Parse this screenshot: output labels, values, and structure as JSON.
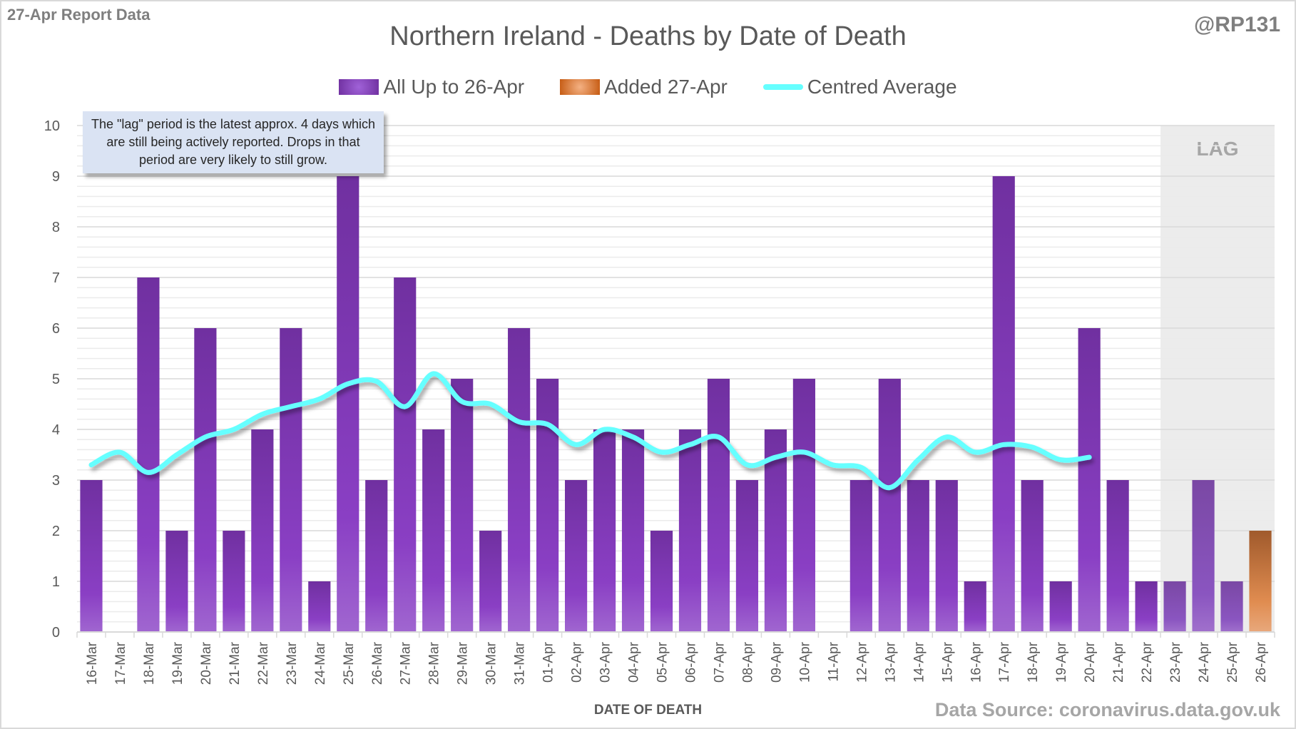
{
  "header": {
    "report_label": "27-Apr Report Data",
    "handle": "@RP131",
    "title": "Northern Ireland - Deaths by Date of Death"
  },
  "legend": {
    "items": [
      {
        "label": "All Up to 26-Apr",
        "kind": "bar",
        "color": "#7c35b8"
      },
      {
        "label": "Added 27-Apr",
        "kind": "bar",
        "color": "#d9773a"
      },
      {
        "label": "Centred Average",
        "kind": "line",
        "color": "#66ffff"
      }
    ]
  },
  "annotation": {
    "note": "The \"lag\" period is the latest approx. 4 days which are still being actively reported. Drops in that period are very likely to still grow.",
    "lag_label": "LAG"
  },
  "footer": {
    "xlabel": "DATE OF DEATH",
    "source": "Data Source: coronavirus.data.gov.uk"
  },
  "chart_data": {
    "type": "bar",
    "title": "Northern Ireland - Deaths by Date of Death",
    "xlabel": "DATE OF DEATH",
    "ylabel": "",
    "ylim": [
      0,
      10
    ],
    "yticks": [
      0,
      1,
      2,
      3,
      4,
      5,
      6,
      7,
      8,
      9,
      10
    ],
    "minor_grid_step": 0.2,
    "grid": true,
    "legend_position": "top-center",
    "lag_start_category": "23-Apr",
    "categories": [
      "16-Mar",
      "17-Mar",
      "18-Mar",
      "19-Mar",
      "20-Mar",
      "21-Mar",
      "22-Mar",
      "23-Mar",
      "24-Mar",
      "25-Mar",
      "26-Mar",
      "27-Mar",
      "28-Mar",
      "29-Mar",
      "30-Mar",
      "31-Mar",
      "01-Apr",
      "02-Apr",
      "03-Apr",
      "04-Apr",
      "05-Apr",
      "06-Apr",
      "07-Apr",
      "08-Apr",
      "09-Apr",
      "10-Apr",
      "11-Apr",
      "12-Apr",
      "13-Apr",
      "14-Apr",
      "15-Apr",
      "16-Apr",
      "17-Apr",
      "18-Apr",
      "19-Apr",
      "20-Apr",
      "21-Apr",
      "22-Apr",
      "23-Apr",
      "24-Apr",
      "25-Apr",
      "26-Apr"
    ],
    "series": [
      {
        "name": "All Up to 26-Apr",
        "type": "bar",
        "stacked": true,
        "values": [
          3,
          0,
          7,
          2,
          6,
          2,
          4,
          6,
          1,
          9,
          3,
          7,
          4,
          5,
          2,
          6,
          5,
          3,
          4,
          4,
          2,
          4,
          5,
          3,
          4,
          5,
          0,
          3,
          5,
          3,
          3,
          1,
          9,
          3,
          1,
          6,
          3,
          1,
          1,
          3,
          1,
          0
        ]
      },
      {
        "name": "Added 27-Apr",
        "type": "bar",
        "stacked": true,
        "values": [
          0,
          0,
          0,
          0,
          0,
          0,
          0,
          0,
          0,
          0,
          0,
          0,
          0,
          0,
          0,
          0,
          0,
          0,
          0,
          0,
          0,
          0,
          0,
          0,
          0,
          0,
          0,
          0,
          0,
          0,
          0,
          0,
          0,
          0,
          0,
          0,
          0,
          0,
          0,
          0,
          0,
          2
        ]
      },
      {
        "name": "Centred Average",
        "type": "line",
        "values": [
          3.3,
          3.55,
          3.15,
          3.5,
          3.85,
          4.0,
          4.3,
          4.45,
          4.6,
          4.9,
          4.95,
          4.45,
          5.1,
          4.55,
          4.5,
          4.15,
          4.1,
          3.7,
          4.0,
          3.85,
          3.55,
          3.7,
          3.85,
          3.3,
          3.45,
          3.55,
          3.3,
          3.25,
          2.85,
          3.4,
          3.85,
          3.55,
          3.7,
          3.65,
          3.4,
          3.45,
          null,
          null,
          null,
          null,
          null,
          null
        ]
      }
    ]
  }
}
